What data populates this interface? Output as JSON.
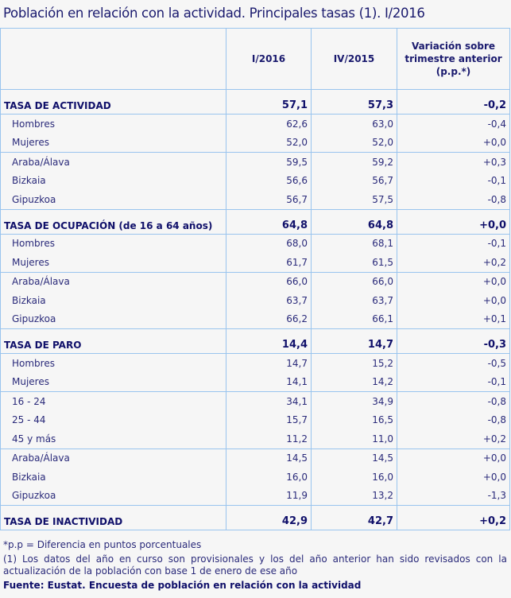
{
  "title": "Población en relación con la actividad. Principales tasas (1). I/2016",
  "table": {
    "headers": [
      "",
      "I/2016",
      "IV/2015",
      "Variación sobre trimestre anterior (p.p.*)"
    ],
    "sections": [
      {
        "label": "TASA DE ACTIVIDAD",
        "values": [
          "57,1",
          "57,3",
          "-0,2"
        ],
        "groups": [
          [
            {
              "label": "Hombres",
              "values": [
                "62,6",
                "63,0",
                "-0,4"
              ]
            },
            {
              "label": "Mujeres",
              "values": [
                "52,0",
                "52,0",
                "+0,0"
              ]
            }
          ],
          [
            {
              "label": "Araba/Álava",
              "values": [
                "59,5",
                "59,2",
                "+0,3"
              ]
            },
            {
              "label": "Bizkaia",
              "values": [
                "56,6",
                "56,7",
                "-0,1"
              ]
            },
            {
              "label": "Gipuzkoa",
              "values": [
                "56,7",
                "57,5",
                "-0,8"
              ]
            }
          ]
        ]
      },
      {
        "label": "TASA DE OCUPACIÓN (de 16 a 64 años)",
        "values": [
          "64,8",
          "64,8",
          "+0,0"
        ],
        "groups": [
          [
            {
              "label": "Hombres",
              "values": [
                "68,0",
                "68,1",
                "-0,1"
              ]
            },
            {
              "label": "Mujeres",
              "values": [
                "61,7",
                "61,5",
                "+0,2"
              ]
            }
          ],
          [
            {
              "label": "Araba/Álava",
              "values": [
                "66,0",
                "66,0",
                "+0,0"
              ]
            },
            {
              "label": "Bizkaia",
              "values": [
                "63,7",
                "63,7",
                "+0,0"
              ]
            },
            {
              "label": "Gipuzkoa",
              "values": [
                "66,2",
                "66,1",
                "+0,1"
              ]
            }
          ]
        ]
      },
      {
        "label": "TASA DE PARO",
        "values": [
          "14,4",
          "14,7",
          "-0,3"
        ],
        "groups": [
          [
            {
              "label": "Hombres",
              "values": [
                "14,7",
                "15,2",
                "-0,5"
              ]
            },
            {
              "label": "Mujeres",
              "values": [
                "14,1",
                "14,2",
                "-0,1"
              ]
            }
          ],
          [
            {
              "label": "16 - 24",
              "values": [
                "34,1",
                "34,9",
                "-0,8"
              ]
            },
            {
              "label": "25 - 44",
              "values": [
                "15,7",
                "16,5",
                "-0,8"
              ]
            },
            {
              "label": "45  y más",
              "values": [
                "11,2",
                "11,0",
                "+0,2"
              ]
            }
          ],
          [
            {
              "label": "Araba/Álava",
              "values": [
                "14,5",
                "14,5",
                "+0,0"
              ]
            },
            {
              "label": "Bizkaia",
              "values": [
                "16,0",
                "16,0",
                "+0,0"
              ]
            },
            {
              "label": "Gipuzkoa",
              "values": [
                "11,9",
                "13,2",
                "-1,3"
              ]
            }
          ]
        ]
      },
      {
        "label": "TASA DE INACTIVIDAD",
        "values": [
          "42,9",
          "42,7",
          "+0,2"
        ],
        "groups": []
      }
    ]
  },
  "notes": {
    "pp": "*p.p = Diferencia en puntos porcentuales",
    "footnote1": "(1) Los datos del año en curso son provisionales y los del año anterior han sido revisados con la actualización de la población con base 1 de enero de ese año",
    "source": "Fuente: Eustat. Encuesta de población en relación con la actividad"
  },
  "colors": {
    "text": "#1a1a6e",
    "border": "#99c4ee",
    "background": "#f6f6f6"
  }
}
